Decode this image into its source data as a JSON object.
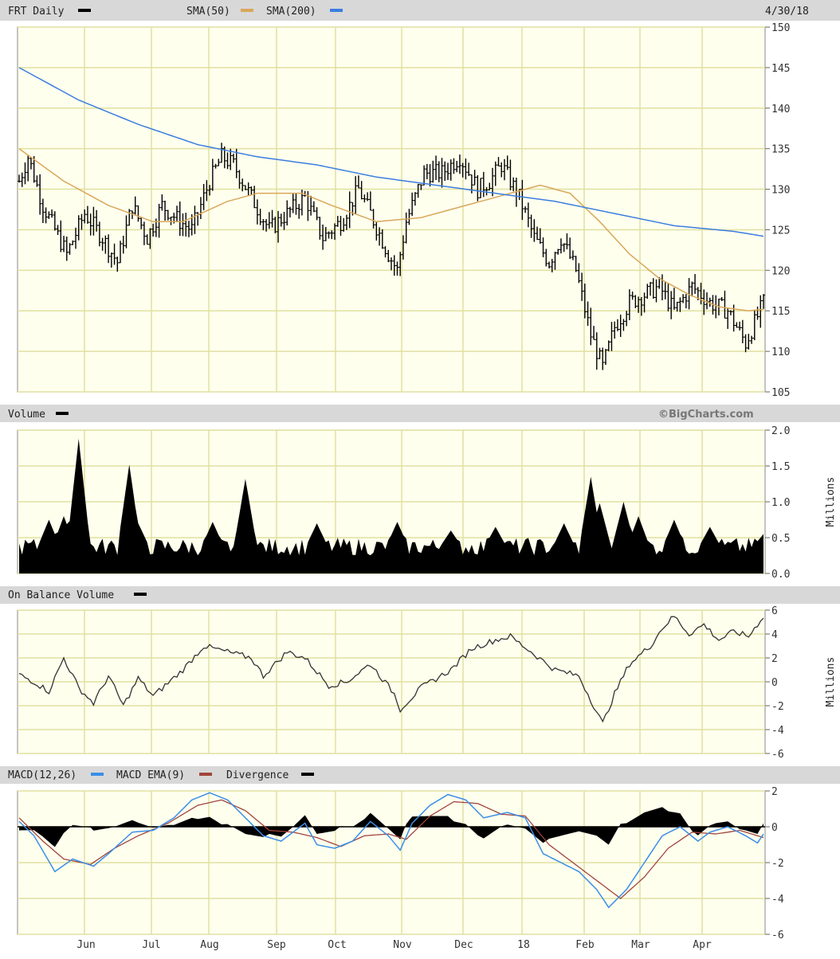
{
  "header": {
    "symbol_label": "FRT Daily",
    "sma50_label": "SMA(50)",
    "sma200_label": "SMA(200)",
    "date": "4/30/18"
  },
  "volume_panel": {
    "title": "Volume",
    "watermark": "©BigCharts.com",
    "units": "Millions"
  },
  "obv_panel": {
    "title": "On Balance Volume",
    "units": "Millions"
  },
  "macd_panel": {
    "title_macd": "MACD(12,26)",
    "title_ema": "MACD EMA(9)",
    "title_div": "Divergence"
  },
  "colors": {
    "background": "#ffffee",
    "grid": "#e0e0a0",
    "header_bar": "#d8d8d8",
    "price_bar": "#000000",
    "sma50": "#d9a75a",
    "sma200": "#3b7de0",
    "macd": "#3b8ee8",
    "macd_ema": "#a0453c",
    "divergence": "#000000"
  },
  "chart_data": [
    {
      "type": "ohlc",
      "name": "price",
      "x_ticks": [
        "Jun",
        "Jul",
        "Aug",
        "Sep",
        "Oct",
        "Nov",
        "Dec",
        "18",
        "Feb",
        "Mar",
        "Apr"
      ],
      "y_ticks": [
        150,
        145,
        140,
        135,
        130,
        125,
        120,
        115,
        110,
        105
      ],
      "ylim": [
        105,
        150
      ],
      "close_anchors": [
        [
          0,
          131
        ],
        [
          3,
          134
        ],
        [
          8,
          128
        ],
        [
          16,
          122
        ],
        [
          22,
          127
        ],
        [
          28,
          124
        ],
        [
          33,
          121
        ],
        [
          38,
          128
        ],
        [
          43,
          124
        ],
        [
          48,
          128
        ],
        [
          54,
          126
        ],
        [
          58,
          125
        ],
        [
          64,
          131
        ],
        [
          68,
          134
        ],
        [
          72,
          133
        ],
        [
          78,
          129
        ],
        [
          84,
          125
        ],
        [
          90,
          127
        ],
        [
          96,
          129
        ],
        [
          102,
          124
        ],
        [
          108,
          126
        ],
        [
          114,
          130
        ],
        [
          118,
          127
        ],
        [
          124,
          122
        ],
        [
          127,
          120
        ],
        [
          130,
          126
        ],
        [
          136,
          132
        ],
        [
          142,
          132
        ],
        [
          148,
          134
        ],
        [
          154,
          130
        ],
        [
          158,
          131
        ],
        [
          162,
          133
        ],
        [
          168,
          129
        ],
        [
          173,
          124
        ],
        [
          178,
          121
        ],
        [
          182,
          124
        ],
        [
          187,
          120
        ],
        [
          192,
          112
        ],
        [
          196,
          108
        ],
        [
          200,
          113
        ],
        [
          205,
          116
        ],
        [
          210,
          117
        ],
        [
          215,
          118
        ],
        [
          220,
          115
        ],
        [
          226,
          118
        ],
        [
          232,
          116
        ],
        [
          238,
          115
        ],
        [
          244,
          111
        ],
        [
          250,
          116
        ]
      ],
      "sma50_anchors": [
        [
          0,
          135
        ],
        [
          15,
          131
        ],
        [
          30,
          128
        ],
        [
          45,
          126
        ],
        [
          55,
          126
        ],
        [
          70,
          128.5
        ],
        [
          80,
          129.5
        ],
        [
          95,
          129.5
        ],
        [
          105,
          128
        ],
        [
          120,
          126
        ],
        [
          135,
          126.5
        ],
        [
          150,
          128
        ],
        [
          165,
          129.5
        ],
        [
          175,
          130.5
        ],
        [
          185,
          129.5
        ],
        [
          195,
          126
        ],
        [
          205,
          122
        ],
        [
          215,
          119
        ],
        [
          225,
          117
        ],
        [
          235,
          115.5
        ],
        [
          245,
          115
        ],
        [
          250,
          115.2
        ]
      ],
      "sma200_anchors": [
        [
          0,
          145
        ],
        [
          20,
          141
        ],
        [
          40,
          138
        ],
        [
          60,
          135.5
        ],
        [
          80,
          134
        ],
        [
          100,
          133
        ],
        [
          120,
          131.5
        ],
        [
          140,
          130.5
        ],
        [
          160,
          129.5
        ],
        [
          180,
          128.5
        ],
        [
          200,
          127
        ],
        [
          220,
          125.5
        ],
        [
          240,
          124.8
        ],
        [
          250,
          124.2
        ]
      ]
    },
    {
      "type": "bar",
      "name": "volume",
      "unit": "Millions",
      "y_ticks": [
        2.0,
        1.5,
        1.0,
        0.5,
        0.0
      ],
      "ylim": [
        0,
        2
      ],
      "baseline": 0.35,
      "spikes": [
        [
          20,
          1.88
        ],
        [
          37,
          1.52
        ],
        [
          76,
          1.32
        ],
        [
          192,
          1.35
        ],
        [
          195,
          0.98
        ],
        [
          203,
          1.0
        ],
        [
          127,
          0.72
        ],
        [
          10,
          0.75
        ],
        [
          15,
          0.8
        ],
        [
          40,
          0.7
        ],
        [
          65,
          0.72
        ],
        [
          100,
          0.7
        ],
        [
          145,
          0.6
        ],
        [
          160,
          0.65
        ],
        [
          183,
          0.7
        ],
        [
          208,
          0.8
        ],
        [
          220,
          0.75
        ],
        [
          232,
          0.65
        ],
        [
          250,
          0.55
        ]
      ]
    },
    {
      "type": "line",
      "name": "on_balance_volume",
      "unit": "Millions",
      "y_ticks": [
        6,
        4,
        2,
        0,
        -2,
        -4,
        -6
      ],
      "ylim": [
        -6,
        6
      ],
      "anchors": [
        [
          0,
          0.6
        ],
        [
          5,
          0.0
        ],
        [
          10,
          -0.8
        ],
        [
          15,
          2.0
        ],
        [
          20,
          -0.5
        ],
        [
          25,
          -1.8
        ],
        [
          30,
          0.5
        ],
        [
          35,
          -2.0
        ],
        [
          40,
          0.3
        ],
        [
          45,
          -1.2
        ],
        [
          55,
          1.0
        ],
        [
          62,
          3.0
        ],
        [
          70,
          2.5
        ],
        [
          78,
          2.0
        ],
        [
          82,
          0.5
        ],
        [
          90,
          2.5
        ],
        [
          96,
          2.0
        ],
        [
          104,
          -0.3
        ],
        [
          110,
          0.0
        ],
        [
          118,
          1.5
        ],
        [
          126,
          -1.0
        ],
        [
          128,
          -2.3
        ],
        [
          135,
          -0.5
        ],
        [
          145,
          1.0
        ],
        [
          152,
          2.8
        ],
        [
          160,
          3.5
        ],
        [
          165,
          3.8
        ],
        [
          172,
          2.5
        ],
        [
          180,
          1.0
        ],
        [
          188,
          0.5
        ],
        [
          192,
          -1.5
        ],
        [
          196,
          -3.5
        ],
        [
          200,
          -1.0
        ],
        [
          205,
          1.5
        ],
        [
          212,
          3.0
        ],
        [
          216,
          4.5
        ],
        [
          220,
          5.5
        ],
        [
          225,
          4.0
        ],
        [
          230,
          4.8
        ],
        [
          235,
          3.5
        ],
        [
          240,
          4.2
        ],
        [
          245,
          3.8
        ],
        [
          250,
          5.5
        ]
      ]
    },
    {
      "type": "line",
      "name": "macd",
      "y_ticks": [
        2,
        0,
        -2,
        -4,
        -6
      ],
      "ylim": [
        -6,
        2
      ],
      "macd_anchors": [
        [
          0,
          0.3
        ],
        [
          5,
          -0.5
        ],
        [
          12,
          -2.5
        ],
        [
          18,
          -1.8
        ],
        [
          25,
          -2.2
        ],
        [
          30,
          -1.5
        ],
        [
          38,
          -0.3
        ],
        [
          45,
          -0.2
        ],
        [
          52,
          0.5
        ],
        [
          58,
          1.5
        ],
        [
          64,
          1.9
        ],
        [
          70,
          1.5
        ],
        [
          76,
          0.5
        ],
        [
          82,
          -0.5
        ],
        [
          88,
          -0.8
        ],
        [
          96,
          0.2
        ],
        [
          100,
          -1.0
        ],
        [
          106,
          -1.2
        ],
        [
          112,
          -0.8
        ],
        [
          118,
          0.3
        ],
        [
          124,
          -0.5
        ],
        [
          128,
          -1.3
        ],
        [
          132,
          0.2
        ],
        [
          138,
          1.2
        ],
        [
          144,
          1.8
        ],
        [
          150,
          1.5
        ],
        [
          156,
          0.5
        ],
        [
          164,
          0.8
        ],
        [
          170,
          0.5
        ],
        [
          176,
          -1.5
        ],
        [
          182,
          -2.0
        ],
        [
          188,
          -2.5
        ],
        [
          194,
          -3.5
        ],
        [
          198,
          -4.5
        ],
        [
          204,
          -3.5
        ],
        [
          210,
          -2.0
        ],
        [
          216,
          -0.5
        ],
        [
          222,
          0.0
        ],
        [
          228,
          -0.8
        ],
        [
          232,
          -0.3
        ],
        [
          238,
          0.0
        ],
        [
          244,
          -0.5
        ],
        [
          248,
          -0.9
        ],
        [
          250,
          -0.4
        ]
      ],
      "ema_anchors": [
        [
          0,
          0.5
        ],
        [
          8,
          -0.8
        ],
        [
          15,
          -1.8
        ],
        [
          24,
          -2.1
        ],
        [
          32,
          -1.2
        ],
        [
          40,
          -0.5
        ],
        [
          50,
          0.2
        ],
        [
          60,
          1.2
        ],
        [
          68,
          1.5
        ],
        [
          76,
          0.9
        ],
        [
          84,
          -0.2
        ],
        [
          92,
          -0.3
        ],
        [
          100,
          -0.6
        ],
        [
          108,
          -1.1
        ],
        [
          116,
          -0.5
        ],
        [
          124,
          -0.4
        ],
        [
          130,
          -0.7
        ],
        [
          138,
          0.6
        ],
        [
          146,
          1.4
        ],
        [
          154,
          1.3
        ],
        [
          162,
          0.7
        ],
        [
          170,
          0.6
        ],
        [
          178,
          -1.0
        ],
        [
          186,
          -2.0
        ],
        [
          194,
          -3.0
        ],
        [
          202,
          -4.0
        ],
        [
          210,
          -2.8
        ],
        [
          218,
          -1.2
        ],
        [
          226,
          -0.3
        ],
        [
          234,
          -0.4
        ],
        [
          242,
          -0.2
        ],
        [
          250,
          -0.6
        ]
      ]
    }
  ]
}
